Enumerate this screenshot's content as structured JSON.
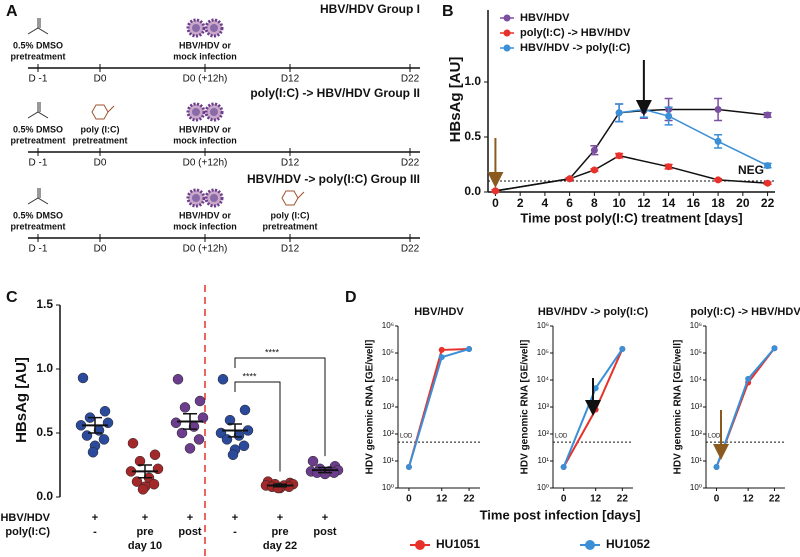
{
  "diagram": {
    "panel": "A",
    "timelines": [
      {
        "title": "HBV/HDV Group I",
        "ticks": [
          "D -1",
          "D0",
          "D0 (+12h)",
          "D12",
          "D22"
        ],
        "events": [
          [
            "0.5% DMSO",
            "pretreatment"
          ],
          [
            "HBV/HDV or",
            "mock infection"
          ]
        ]
      },
      {
        "title": "poly(I:C) -> HBV/HDV Group II",
        "ticks": [
          "D -1",
          "D0",
          "D0 (+12h)",
          "D12",
          "D22"
        ],
        "events": [
          [
            "0.5% DMSO",
            "pretreatment"
          ],
          [
            "poly (I:C)",
            "pretreatment"
          ],
          [
            "HBV/HDV or",
            "mock infection"
          ]
        ]
      },
      {
        "title": "HBV/HDV -> poly(I:C) Group III",
        "ticks": [
          "D -1",
          "D0",
          "D0 (+12h)",
          "D12",
          "D22"
        ],
        "events": [
          [
            "0.5% DMSO",
            "pretreatment"
          ],
          [
            "HBV/HDV or",
            "mock infection"
          ],
          [
            "poly (I:C)",
            "pretreatment"
          ]
        ]
      }
    ]
  },
  "chart_data": [
    {
      "type": "line",
      "panel": "B",
      "ylabel": "HBsAg [AU]",
      "xlabel": "Time post poly(I:C) treatment [days]",
      "xlim": [
        -0.6,
        22.6
      ],
      "xticks": [
        0,
        2,
        4,
        6,
        8,
        10,
        12,
        14,
        16,
        18,
        20,
        22
      ],
      "ylim": [
        0,
        1.5
      ],
      "yticks": [
        {
          "value": 0,
          "label": "0.0"
        },
        {
          "value": 0.5,
          "label": "0.5"
        },
        {
          "value": 1,
          "label": "1.0"
        }
      ],
      "neg_line": 0.1,
      "neg_label": "NEG",
      "series": [
        {
          "name": "HBV/HDV",
          "color": "#7b4fa0",
          "x": [
            0,
            6,
            8,
            10,
            12,
            14,
            18,
            22
          ],
          "values": [
            0.01,
            0.12,
            0.38,
            0.72,
            0.74,
            0.75,
            0.75,
            0.7
          ],
          "errors": [
            0.01,
            0.01,
            0.04,
            0.08,
            0.07,
            0.1,
            0.1,
            0.02
          ]
        },
        {
          "name": "poly(I:C) -> HBV/HDV",
          "color": "#e8312a",
          "x": [
            0,
            6,
            8,
            10,
            14,
            18,
            22
          ],
          "values": [
            0.01,
            0.12,
            0.2,
            0.33,
            0.23,
            0.11,
            0.08
          ],
          "errors": [
            0.01,
            0.01,
            0.01,
            0.02,
            0.02,
            0.01,
            0.01
          ]
        },
        {
          "name": "HBV/HDV -> poly(I:C)",
          "color": "#3a8fd6",
          "x": [
            10,
            12,
            14,
            18,
            22
          ],
          "values": [
            0.72,
            0.75,
            0.69,
            0.46,
            0.24
          ],
          "errors": [
            0.08,
            0.07,
            0.08,
            0.06,
            0.02
          ]
        }
      ]
    },
    {
      "type": "dot",
      "panel": "C",
      "ylabel": "HBsAg [AU]",
      "ylim": [
        0,
        1.5
      ],
      "yticks": [
        {
          "value": 0,
          "label": "0.0"
        },
        {
          "value": 0.5,
          "label": "0.5"
        },
        {
          "value": 1,
          "label": "1.0"
        },
        {
          "value": 1.5,
          "label": "1.5"
        }
      ],
      "row_labels": [
        "HBV/HDV",
        "poly(I:C)"
      ],
      "rows": [
        [
          "+",
          "+",
          "+",
          "+",
          "+",
          "+"
        ],
        [
          "-",
          "pre",
          "post",
          "-",
          "pre",
          "post"
        ]
      ],
      "group_labels": [
        "day 10",
        "day 22"
      ],
      "significance": [
        "****",
        "****"
      ],
      "groups": [
        {
          "color": "#2b4a9b",
          "values": [
            0.93,
            0.67,
            0.62,
            0.58,
            0.56,
            0.52,
            0.48,
            0.45,
            0.4,
            0.35
          ],
          "mean": 0.56,
          "sem": 0.06
        },
        {
          "color": "#a3282a",
          "values": [
            0.42,
            0.33,
            0.28,
            0.22,
            0.2,
            0.15,
            0.12,
            0.1,
            0.08,
            0.06
          ],
          "mean": 0.2,
          "sem": 0.05
        },
        {
          "color": "#6b3d8c",
          "values": [
            0.92,
            0.75,
            0.7,
            0.62,
            0.58,
            0.55,
            0.5,
            0.45,
            0.38
          ],
          "mean": 0.59,
          "sem": 0.06
        },
        {
          "color": "#2b4a9b",
          "values": [
            0.92,
            0.68,
            0.6,
            0.52,
            0.5,
            0.48,
            0.45,
            0.4,
            0.37,
            0.33
          ],
          "mean": 0.52,
          "sem": 0.05
        },
        {
          "color": "#a3282a",
          "values": [
            0.12,
            0.11,
            0.1,
            0.1,
            0.09,
            0.09,
            0.08,
            0.08,
            0.07,
            0.07
          ],
          "mean": 0.09,
          "sem": 0.01
        },
        {
          "color": "#6b3d8c",
          "values": [
            0.28,
            0.24,
            0.22,
            0.21,
            0.2,
            0.2,
            0.19,
            0.19,
            0.18
          ],
          "mean": 0.21,
          "sem": 0.02
        }
      ]
    },
    {
      "type": "logline",
      "panel": "D",
      "title": "HBV/HDV",
      "ylabel": "HDV genomic RNA [GE/well]",
      "xlabel": "Time post infection [days]",
      "log_y": true,
      "xlim": [
        -4,
        26
      ],
      "xticks": [
        0,
        12,
        22
      ],
      "ylim": [
        1,
        1000000
      ],
      "yticks": [
        {
          "value": 1,
          "label": "10⁰"
        },
        {
          "value": 10,
          "label": "10¹"
        },
        {
          "value": 100,
          "label": "10²"
        },
        {
          "value": 1000,
          "label": "10³"
        },
        {
          "value": 10000,
          "label": "10⁴"
        },
        {
          "value": 100000,
          "label": "10⁵"
        },
        {
          "value": 1000000,
          "label": "10⁶"
        }
      ],
      "lod": 50,
      "lod_label": "LOD",
      "x": [
        0,
        12,
        22
      ],
      "series": [
        {
          "name": "HU1051",
          "color": "#e8312a",
          "values": [
            6,
            130000,
            140000
          ]
        },
        {
          "name": "HU1052",
          "color": "#3a8fd6",
          "values": [
            6,
            70000,
            140000
          ]
        }
      ]
    },
    {
      "type": "logline",
      "title": "HBV/HDV -> poly(I:C)",
      "ylabel": "HDV genomic RNA [GE/well]",
      "log_y": true,
      "xlim": [
        -4,
        26
      ],
      "xticks": [
        0,
        12,
        22
      ],
      "ylim": [
        1,
        1000000
      ],
      "yticks": [
        {
          "value": 1,
          "label": "10⁰"
        },
        {
          "value": 10,
          "label": "10¹"
        },
        {
          "value": 100,
          "label": "10²"
        },
        {
          "value": 1000,
          "label": "10³"
        },
        {
          "value": 10000,
          "label": "10⁴"
        },
        {
          "value": 100000,
          "label": "10⁵"
        },
        {
          "value": 1000000,
          "label": "10⁶"
        }
      ],
      "lod": 50,
      "lod_label": "LOD",
      "x": [
        0,
        12,
        22
      ],
      "series": [
        {
          "name": "HU1051",
          "color": "#e8312a",
          "values": [
            6,
            800,
            140000
          ]
        },
        {
          "name": "HU1052",
          "color": "#3a8fd6",
          "values": [
            6,
            5000,
            140000
          ]
        }
      ]
    },
    {
      "type": "logline",
      "title": "poly(I:C) -> HBV/HDV",
      "ylabel": "HDV genomic RNA [GE/well]",
      "log_y": true,
      "xlim": [
        -4,
        26
      ],
      "xticks": [
        0,
        12,
        22
      ],
      "ylim": [
        1,
        1000000
      ],
      "yticks": [
        {
          "value": 1,
          "label": "10⁰"
        },
        {
          "value": 10,
          "label": "10¹"
        },
        {
          "value": 100,
          "label": "10²"
        },
        {
          "value": 1000,
          "label": "10³"
        },
        {
          "value": 10000,
          "label": "10⁴"
        },
        {
          "value": 100000,
          "label": "10⁵"
        },
        {
          "value": 1000000,
          "label": "10⁶"
        }
      ],
      "lod": 50,
      "lod_label": "LOD",
      "x": [
        0,
        12,
        22
      ],
      "series": [
        {
          "name": "HU1051",
          "color": "#e8312a",
          "values": [
            6,
            8000,
            150000
          ]
        },
        {
          "name": "HU1052",
          "color": "#3a8fd6",
          "values": [
            6,
            11000,
            150000
          ]
        }
      ]
    }
  ]
}
